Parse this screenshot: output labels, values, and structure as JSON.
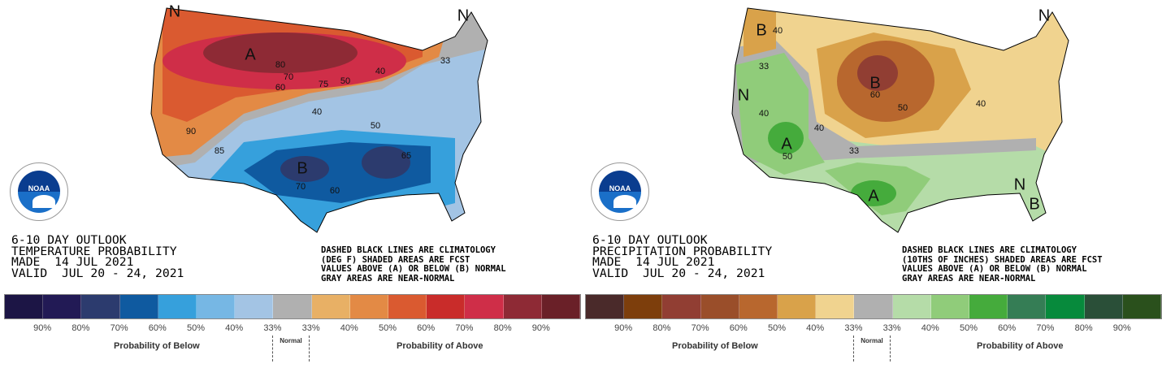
{
  "temperature": {
    "title_lines": [
      "6-10 DAY OUTLOOK",
      "TEMPERATURE PROBABILITY",
      "MADE  14 JUL 2021",
      "VALID  JUL 20 - 24, 2021"
    ],
    "note_lines": [
      "DASHED BLACK LINES ARE CLIMATOLOGY",
      "(DEG F) SHADED AREAS ARE FCST",
      "VALUES ABOVE (A) OR BELOW (B) NORMAL",
      "GRAY AREAS ARE NEAR-NORMAL"
    ],
    "map_labels": [
      "A",
      "B",
      "80",
      "70",
      "60",
      "75",
      "50",
      "40",
      "33",
      "90",
      "85",
      "70",
      "60",
      "50",
      "40",
      "65",
      "N",
      "N"
    ],
    "legend_colors": [
      "#1c1545",
      "#221a55",
      "#2c3b6e",
      "#0f5aa0",
      "#36a0dc",
      "#76b7e4",
      "#a3c4e4",
      "#b0b0b0",
      "#e8b065",
      "#e38a45",
      "#da5a30",
      "#c92c2a",
      "#cf2e48",
      "#8e2a35",
      "#6a2028"
    ],
    "tick_labels": [
      "90%",
      "80%",
      "70%",
      "60%",
      "50%",
      "40%",
      "33%",
      "33%",
      "40%",
      "50%",
      "60%",
      "70%",
      "80%",
      "90%"
    ],
    "below_label": "Probability of Below",
    "normal_label": "Normal",
    "above_label": "Probability of Above"
  },
  "precipitation": {
    "title_lines": [
      "6-10 DAY OUTLOOK",
      "PRECIPITATION PROBABILITY",
      "MADE  14 JUL 2021",
      "VALID  JUL 20 - 24, 2021"
    ],
    "note_lines": [
      "DASHED BLACK LINES ARE CLIMATOLOGY",
      "(10THS OF INCHES) SHADED AREAS ARE FCST",
      "VALUES ABOVE (A) OR BELOW (B) NORMAL",
      "GRAY AREAS ARE NEAR-NORMAL"
    ],
    "map_labels": [
      "B",
      "B",
      "A",
      "A",
      "B",
      "40",
      "33",
      "60",
      "50",
      "40",
      "40",
      "50",
      "33",
      "40",
      "N",
      "N",
      "N"
    ],
    "legend_colors": [
      "#4a2a2a",
      "#7d3e0c",
      "#913e33",
      "#9a4e2a",
      "#b8672e",
      "#d9a24a",
      "#f0d38f",
      "#b0b0b0",
      "#b5dca8",
      "#90cc7a",
      "#45ab3c",
      "#357d55",
      "#078a3c",
      "#2a4f38",
      "#2a501c"
    ],
    "tick_labels": [
      "90%",
      "80%",
      "70%",
      "60%",
      "50%",
      "40%",
      "33%",
      "33%",
      "40%",
      "50%",
      "60%",
      "70%",
      "80%",
      "90%"
    ],
    "below_label": "Probability of Below",
    "normal_label": "Normal",
    "above_label": "Probability of Above"
  },
  "logo": {
    "text": "NOAA"
  }
}
